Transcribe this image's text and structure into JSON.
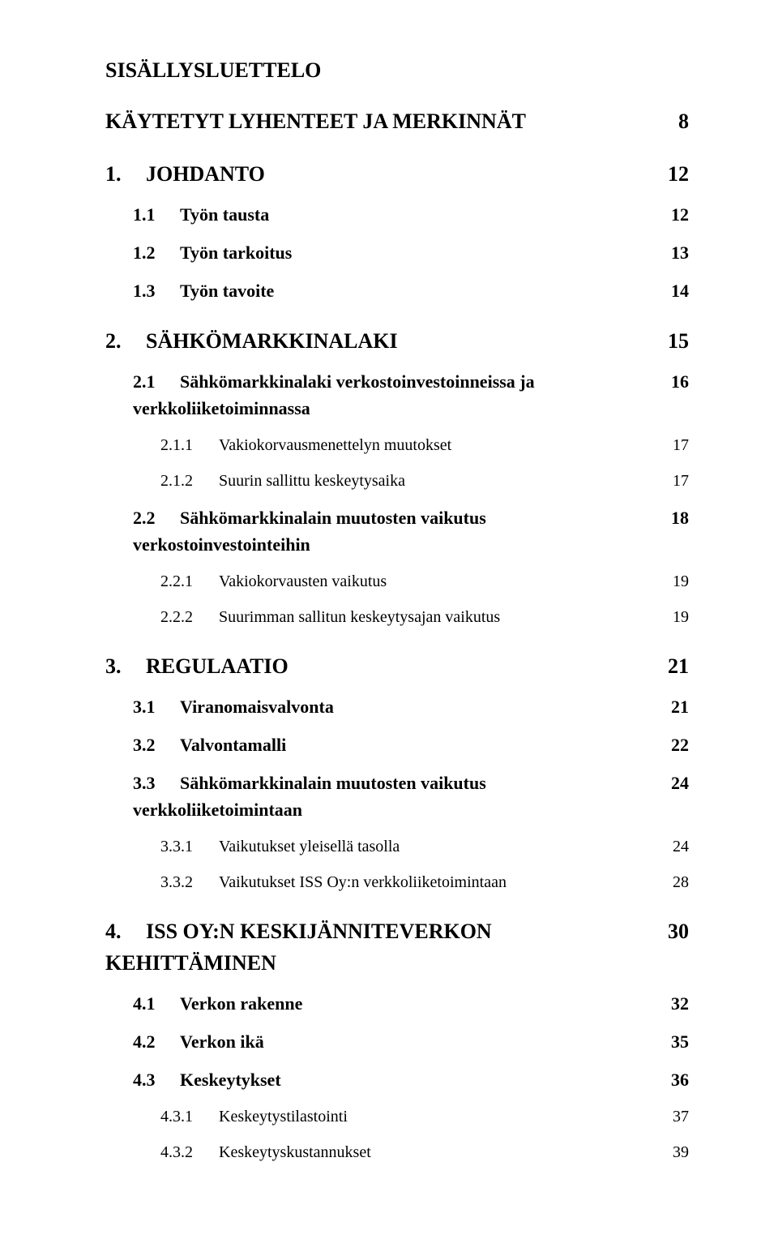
{
  "title": "SISÄLLYSLUETTELO",
  "text_color": "#000000",
  "background_color": "#ffffff",
  "font_family": "Times New Roman",
  "toc": [
    {
      "level": 0,
      "num": "",
      "text": "KÄYTETYT LYHENTEET JA MERKINNÄT",
      "page": "8"
    },
    {
      "level": 0,
      "num": "1.",
      "text": "JOHDANTO",
      "page": "12"
    },
    {
      "level": 1,
      "num": "1.1",
      "text": "Työn tausta",
      "page": "12"
    },
    {
      "level": 1,
      "num": "1.2",
      "text": "Työn tarkoitus",
      "page": "13"
    },
    {
      "level": 1,
      "num": "1.3",
      "text": "Työn tavoite",
      "page": "14"
    },
    {
      "level": 0,
      "num": "2.",
      "text": "SÄHKÖMARKKINALAKI",
      "page": "15"
    },
    {
      "level": 1,
      "num": "2.1",
      "text": "Sähkömarkkinalaki verkostoinvestoinneissa ja verkkoliiketoiminnassa",
      "page": "16"
    },
    {
      "level": 2,
      "num": "2.1.1",
      "text": "Vakiokorvausmenettelyn muutokset",
      "page": "17"
    },
    {
      "level": 2,
      "num": "2.1.2",
      "text": "Suurin sallittu keskeytysaika",
      "page": "17"
    },
    {
      "level": 1,
      "num": "2.2",
      "text": "Sähkömarkkinalain muutosten vaikutus verkostoinvestointeihin",
      "page": "18"
    },
    {
      "level": 2,
      "num": "2.2.1",
      "text": "Vakiokorvausten vaikutus",
      "page": "19"
    },
    {
      "level": 2,
      "num": "2.2.2",
      "text": "Suurimman sallitun keskeytysajan vaikutus",
      "page": "19"
    },
    {
      "level": 0,
      "num": "3.",
      "text": "REGULAATIO",
      "page": "21"
    },
    {
      "level": 1,
      "num": "3.1",
      "text": "Viranomaisvalvonta",
      "page": "21"
    },
    {
      "level": 1,
      "num": "3.2",
      "text": "Valvontamalli",
      "page": "22"
    },
    {
      "level": 1,
      "num": "3.3",
      "text": "Sähkömarkkinalain muutosten vaikutus verkkoliiketoimintaan",
      "page": "24"
    },
    {
      "level": 2,
      "num": "3.3.1",
      "text": "Vaikutukset yleisellä tasolla",
      "page": "24"
    },
    {
      "level": 2,
      "num": "3.3.2",
      "text": "Vaikutukset ISS Oy:n verkkoliiketoimintaan",
      "page": "28"
    },
    {
      "level": 0,
      "num": "4.",
      "text": "ISS OY:N KESKIJÄNNITEVERKON KEHITTÄMINEN",
      "page": "30"
    },
    {
      "level": 1,
      "num": "4.1",
      "text": "Verkon rakenne",
      "page": "32"
    },
    {
      "level": 1,
      "num": "4.2",
      "text": "Verkon ikä",
      "page": "35"
    },
    {
      "level": 1,
      "num": "4.3",
      "text": "Keskeytykset",
      "page": "36"
    },
    {
      "level": 2,
      "num": "4.3.1",
      "text": "Keskeytystilastointi",
      "page": "37"
    },
    {
      "level": 2,
      "num": "4.3.2",
      "text": "Keskeytyskustannukset",
      "page": "39"
    }
  ]
}
